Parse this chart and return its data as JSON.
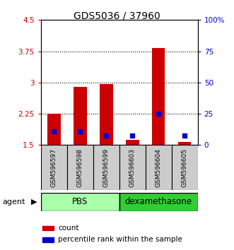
{
  "title": "GDS5036 / 37960",
  "samples": [
    "GSM596597",
    "GSM596598",
    "GSM596599",
    "GSM596603",
    "GSM596604",
    "GSM596605"
  ],
  "red_bar_top": [
    2.25,
    2.9,
    2.97,
    1.63,
    3.83,
    1.58
  ],
  "red_bar_bottom": [
    1.5,
    1.5,
    1.5,
    1.5,
    1.5,
    1.5
  ],
  "blue_dot_value": [
    1.82,
    1.82,
    1.73,
    1.72,
    2.25,
    1.72
  ],
  "ylim_left": [
    1.5,
    4.5
  ],
  "ylim_right": [
    0,
    100
  ],
  "yticks_left": [
    1.5,
    2.25,
    3.0,
    3.75,
    4.5
  ],
  "ytick_labels_left": [
    "1.5",
    "2.25",
    "3",
    "3.75",
    "4.5"
  ],
  "yticks_right": [
    0,
    25,
    50,
    75,
    100
  ],
  "ytick_labels_right": [
    "0",
    "25",
    "50",
    "75",
    "100%"
  ],
  "hlines": [
    2.25,
    3.0,
    3.75
  ],
  "bar_color": "#CC0000",
  "dot_color": "#0000CC",
  "bar_width": 0.5,
  "legend_count_label": "count",
  "legend_pct_label": "percentile rank within the sample",
  "agent_label": "agent",
  "tick_bg_color": "#CCCCCC",
  "agent_row_pbs_color": "#AAFFAA",
  "agent_row_dex_color": "#33CC33",
  "pbs_samples": 3,
  "dex_samples": 3
}
